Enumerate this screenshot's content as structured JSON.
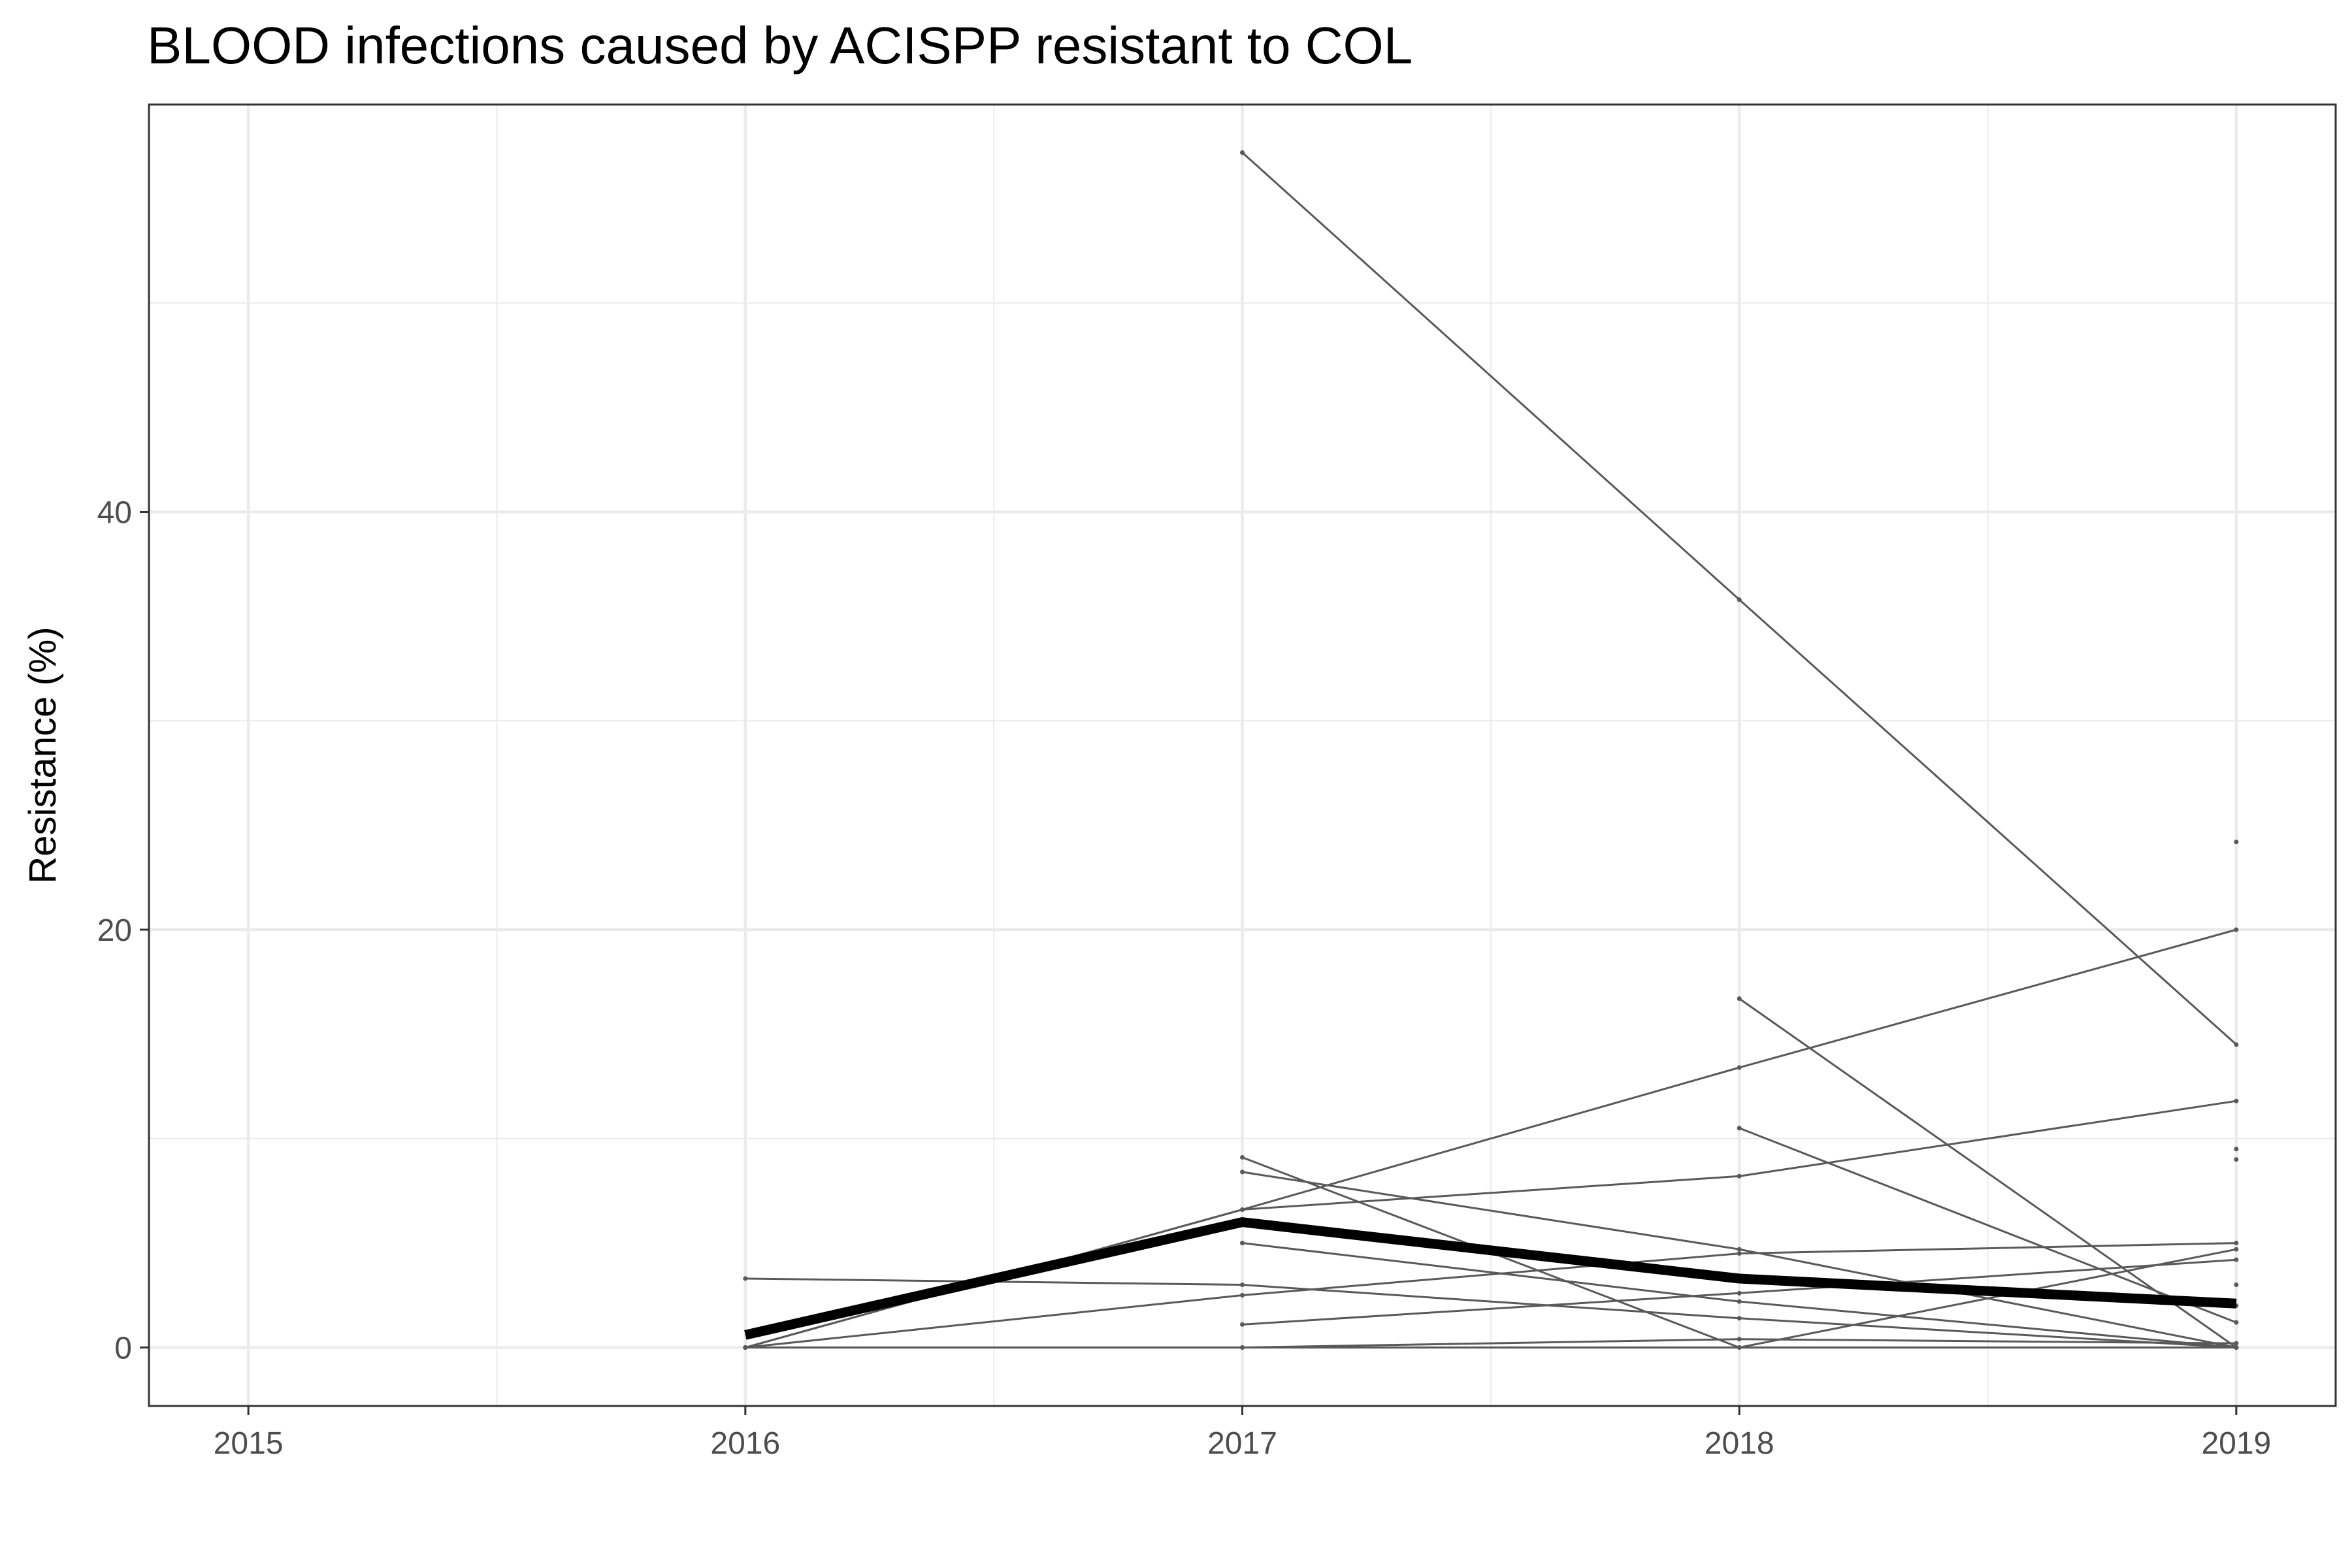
{
  "chart_data": {
    "type": "line",
    "title": "BLOOD infections caused by ACISPP resistant to COL",
    "xlabel": "",
    "ylabel": "Resistance (%)",
    "x_ticks": [
      "2015",
      "2016",
      "2017",
      "2018",
      "2019"
    ],
    "y_ticks": [
      "0",
      "20",
      "40"
    ],
    "xlim": [
      2014.8,
      2019.2
    ],
    "ylim": [
      -2.8,
      59.5
    ],
    "grid": true,
    "legend": "none",
    "colors": {
      "series": "#595959",
      "summary": "#000000",
      "grid": "#ebebeb",
      "frame": "#333333"
    },
    "series": [
      {
        "x": [
          2017,
          2018,
          2019
        ],
        "y": [
          57.2,
          35.8,
          14.5
        ]
      },
      {
        "x": [
          2016,
          2017,
          2018,
          2019
        ],
        "y": [
          0,
          6.6,
          13.4,
          20.0
        ]
      },
      {
        "x": [
          2016,
          2017,
          2018,
          2019
        ],
        "y": [
          0,
          6.6,
          8.2,
          11.8
        ]
      },
      {
        "x": [
          2018,
          2019
        ],
        "y": [
          16.7,
          0
        ]
      },
      {
        "x": [
          2018,
          2019
        ],
        "y": [
          10.5,
          1.2
        ]
      },
      {
        "x": [
          2017,
          2018,
          2019
        ],
        "y": [
          9.1,
          0,
          4.7
        ]
      },
      {
        "x": [
          2017,
          2018,
          2019
        ],
        "y": [
          8.4,
          4.7,
          0
        ]
      },
      {
        "x": [
          2017,
          2018,
          2019
        ],
        "y": [
          5.0,
          2.2,
          0
        ]
      },
      {
        "x": [
          2016,
          2017,
          2018,
          2019
        ],
        "y": [
          3.3,
          3.0,
          1.4,
          0
        ]
      },
      {
        "x": [
          2016,
          2017,
          2018,
          2019
        ],
        "y": [
          0,
          2.5,
          4.5,
          5.0
        ]
      },
      {
        "x": [
          2017,
          2018,
          2019
        ],
        "y": [
          1.1,
          2.6,
          4.2
        ]
      },
      {
        "x": [
          2017,
          2018,
          2019
        ],
        "y": [
          0,
          0.4,
          0.2
        ]
      },
      {
        "x": [
          2016,
          2017,
          2018,
          2019
        ],
        "y": [
          0,
          0,
          0,
          0
        ]
      },
      {
        "x": [
          2019
        ],
        "y": [
          24.2
        ]
      },
      {
        "x": [
          2019
        ],
        "y": [
          9.5
        ]
      },
      {
        "x": [
          2019
        ],
        "y": [
          9.0
        ]
      },
      {
        "x": [
          2019
        ],
        "y": [
          3.0
        ]
      },
      {
        "x": [
          2019
        ],
        "y": [
          2.0
        ]
      }
    ],
    "summary_series": {
      "x": [
        2016,
        2017,
        2018,
        2019
      ],
      "y": [
        0.6,
        6.0,
        3.3,
        2.1
      ]
    }
  }
}
